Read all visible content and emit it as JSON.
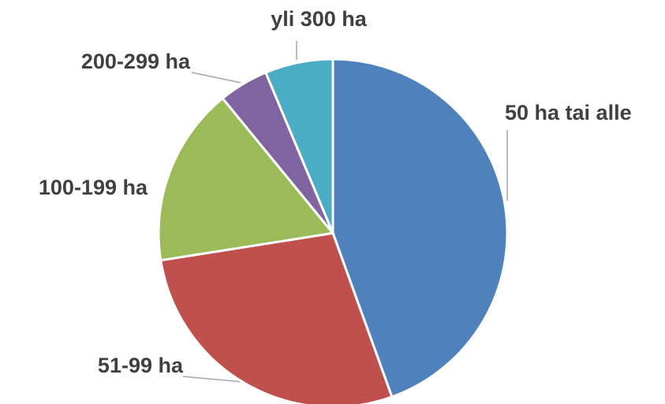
{
  "chart_data": {
    "type": "pie",
    "categories": [
      "50 ha tai alle",
      "51-99 ha",
      "100-199 ha",
      "200-299 ha",
      "yli 300 ha"
    ],
    "values": [
      44.5,
      28,
      16.6,
      4.6,
      6.3
    ],
    "colors": [
      "#4f81bd",
      "#c0504d",
      "#9bbb59",
      "#8064a2",
      "#4bacc6"
    ]
  }
}
